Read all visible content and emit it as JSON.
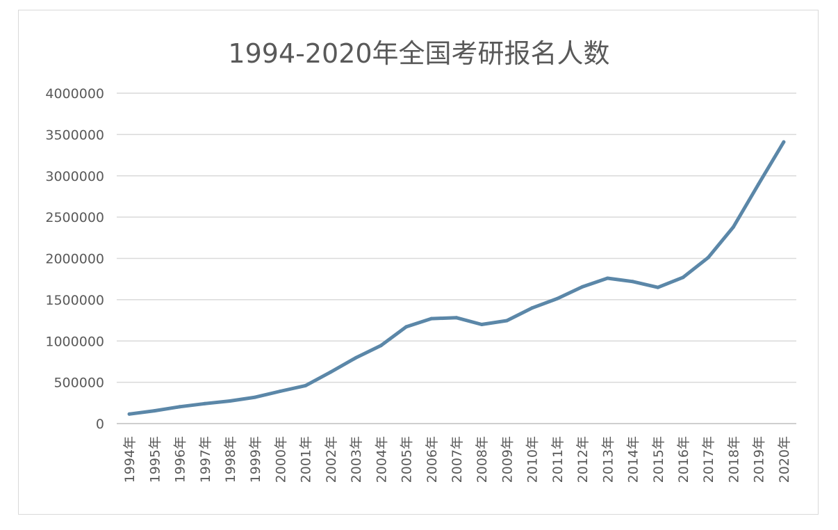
{
  "chart_data": {
    "type": "line",
    "title": "1994-2020年全国考研报名人数",
    "xlabel": "",
    "ylabel": "",
    "ylim": [
      0,
      4000000
    ],
    "yticks": [
      0,
      500000,
      1000000,
      1500000,
      2000000,
      2500000,
      3000000,
      3500000,
      4000000
    ],
    "ytick_labels": [
      "0",
      "500000",
      "1000000",
      "1500000",
      "2000000",
      "2500000",
      "3000000",
      "3500000",
      "4000000"
    ],
    "categories": [
      "1994年",
      "1995年",
      "1996年",
      "1997年",
      "1998年",
      "1999年",
      "2000年",
      "2001年",
      "2002年",
      "2003年",
      "2004年",
      "2005年",
      "2006年",
      "2007年",
      "2008年",
      "2009年",
      "2010年",
      "2011年",
      "2012年",
      "2013年",
      "2014年",
      "2015年",
      "2016年",
      "2017年",
      "2018年",
      "2019年",
      "2020年"
    ],
    "series": [
      {
        "color": "#5b87a8",
        "values": [
          115000,
          155000,
          204000,
          242000,
          274000,
          319000,
          392000,
          460000,
          624000,
          797000,
          945000,
          1171000,
          1271000,
          1282000,
          1200000,
          1246000,
          1400000,
          1512000,
          1656000,
          1760000,
          1720000,
          1649000,
          1770000,
          2010000,
          2380000,
          2900000,
          3410000
        ]
      }
    ],
    "grid": true,
    "legend": "none"
  }
}
